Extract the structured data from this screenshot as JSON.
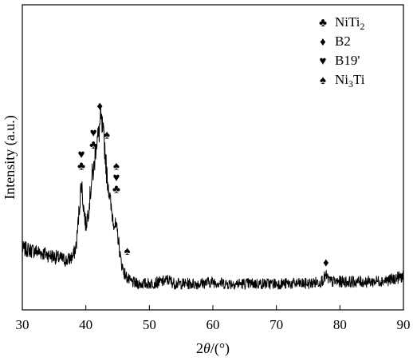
{
  "chart_data": {
    "type": "line",
    "title": "",
    "xlabel_parts": [
      "2",
      "θ",
      "/(°)"
    ],
    "ylabel": "Intensity (a.u.)",
    "xlim": [
      30,
      90
    ],
    "xticks": [
      30,
      40,
      50,
      60,
      70,
      80,
      90
    ],
    "grid": false,
    "legend_position": "top-right",
    "legend": [
      {
        "symbol": "♣",
        "label_parts": [
          "NiTi",
          "2",
          ""
        ]
      },
      {
        "symbol": "♦",
        "label_parts": [
          "B2",
          "",
          ""
        ]
      },
      {
        "symbol": "♥",
        "label_parts": [
          "B19'",
          "",
          ""
        ]
      },
      {
        "symbol": "♠",
        "label_parts": [
          "Ni",
          "3",
          "Ti"
        ]
      }
    ],
    "series": [
      {
        "color": "#000000",
        "x": [
          30,
          32,
          34,
          36,
          37,
          38,
          38.5,
          39,
          39.3,
          39.6,
          40,
          40.5,
          41,
          41.3,
          41.6,
          42,
          42.3,
          42.6,
          43,
          43.3,
          43.6,
          44,
          44.3,
          44.6,
          45,
          45.5,
          46,
          46.5,
          47,
          48,
          50,
          52,
          53,
          54,
          56,
          58,
          60,
          62,
          65,
          70,
          75,
          77,
          77.8,
          78.5,
          80,
          85,
          88,
          90
        ],
        "y": [
          0.2,
          0.19,
          0.17,
          0.15,
          0.14,
          0.16,
          0.22,
          0.42,
          0.55,
          0.43,
          0.32,
          0.42,
          0.58,
          0.62,
          0.75,
          0.78,
          0.87,
          0.82,
          0.72,
          0.58,
          0.52,
          0.4,
          0.36,
          0.32,
          0.28,
          0.14,
          0.08,
          0.05,
          0.03,
          0.02,
          0.02,
          0.03,
          0.04,
          0.02,
          0.02,
          0.02,
          0.03,
          0.02,
          0.02,
          0.02,
          0.02,
          0.03,
          0.06,
          0.03,
          0.03,
          0.03,
          0.04,
          0.06
        ]
      }
    ],
    "peak_markers": [
      {
        "symbol": "♥",
        "x": 39.3,
        "y": 0.67
      },
      {
        "symbol": "♣",
        "x": 39.3,
        "y": 0.61
      },
      {
        "symbol": "♥",
        "x": 41.2,
        "y": 0.78
      },
      {
        "symbol": "♣",
        "x": 41.2,
        "y": 0.72
      },
      {
        "symbol": "♦",
        "x": 42.2,
        "y": 0.92
      },
      {
        "symbol": "♠",
        "x": 43.3,
        "y": 0.77
      },
      {
        "symbol": "♠",
        "x": 44.8,
        "y": 0.61
      },
      {
        "symbol": "♥",
        "x": 44.8,
        "y": 0.55
      },
      {
        "symbol": "♣",
        "x": 44.8,
        "y": 0.49
      },
      {
        "symbol": "♠",
        "x": 46.5,
        "y": 0.17
      },
      {
        "symbol": "♦",
        "x": 77.8,
        "y": 0.11
      }
    ]
  }
}
